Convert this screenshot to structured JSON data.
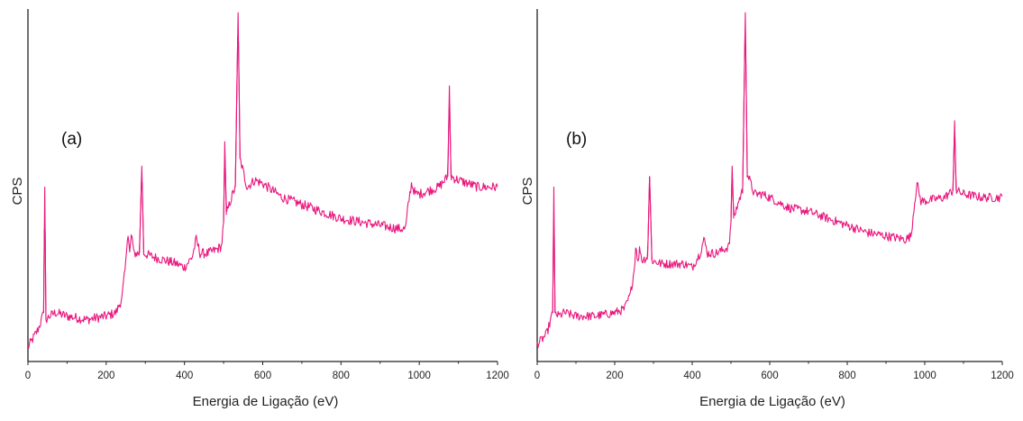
{
  "chart_data": [
    {
      "type": "line",
      "panel_label": "(a)",
      "xlabel": "Energia de Ligação (eV)",
      "ylabel": "CPS",
      "xlim": [
        0,
        1200
      ],
      "ylim": [
        0,
        100
      ],
      "x_ticks": [
        "0",
        "200",
        "400",
        "600",
        "800",
        "1000",
        "1200"
      ],
      "y_ticks_visible": false,
      "series": [
        {
          "color": "#e8177d",
          "points": [
            [
              0,
              4
            ],
            [
              10,
              6
            ],
            [
              25,
              9
            ],
            [
              35,
              12
            ],
            [
              40,
              14
            ],
            [
              43,
              50
            ],
            [
              46,
              12
            ],
            [
              55,
              13
            ],
            [
              70,
              14
            ],
            [
              100,
              13
            ],
            [
              150,
              12
            ],
            [
              200,
              13
            ],
            [
              225,
              14
            ],
            [
              240,
              18
            ],
            [
              250,
              28
            ],
            [
              255,
              38
            ],
            [
              260,
              31
            ],
            [
              265,
              37
            ],
            [
              270,
              31
            ],
            [
              285,
              31
            ],
            [
              291,
              56
            ],
            [
              296,
              31
            ],
            [
              320,
              30
            ],
            [
              350,
              29
            ],
            [
              380,
              28
            ],
            [
              400,
              27
            ],
            [
              420,
              30
            ],
            [
              430,
              35
            ],
            [
              440,
              31
            ],
            [
              460,
              31
            ],
            [
              480,
              32
            ],
            [
              495,
              33
            ],
            [
              500,
              40
            ],
            [
              503,
              63
            ],
            [
              507,
              42
            ],
            [
              520,
              47
            ],
            [
              530,
              50
            ],
            [
              537,
              100
            ],
            [
              542,
              58
            ],
            [
              560,
              50
            ],
            [
              580,
              52
            ],
            [
              600,
              51
            ],
            [
              650,
              47
            ],
            [
              700,
              45
            ],
            [
              750,
              43
            ],
            [
              800,
              41
            ],
            [
              850,
              40
            ],
            [
              900,
              39
            ],
            [
              950,
              38
            ],
            [
              965,
              38
            ],
            [
              972,
              45
            ],
            [
              980,
              51
            ],
            [
              990,
              48
            ],
            [
              1000,
              48
            ],
            [
              1050,
              50
            ],
            [
              1073,
              53
            ],
            [
              1077,
              79
            ],
            [
              1081,
              53
            ],
            [
              1100,
              52
            ],
            [
              1150,
              50
            ],
            [
              1200,
              50
            ]
          ],
          "noise": 1.4
        }
      ]
    },
    {
      "type": "line",
      "panel_label": "(b)",
      "xlabel": "Energia de Ligação (eV)",
      "ylabel": "CPS",
      "xlim": [
        0,
        1200
      ],
      "ylim": [
        0,
        100
      ],
      "x_ticks": [
        "0",
        "200",
        "400",
        "600",
        "800",
        "1000",
        "1200"
      ],
      "y_ticks_visible": false,
      "series": [
        {
          "color": "#e8177d",
          "points": [
            [
              0,
              5
            ],
            [
              10,
              6
            ],
            [
              25,
              8
            ],
            [
              35,
              12
            ],
            [
              40,
              14
            ],
            [
              43,
              50
            ],
            [
              46,
              14
            ],
            [
              55,
              13
            ],
            [
              70,
              14
            ],
            [
              100,
              13
            ],
            [
              150,
              13
            ],
            [
              200,
              14
            ],
            [
              225,
              15
            ],
            [
              240,
              19
            ],
            [
              250,
              26
            ],
            [
              255,
              34
            ],
            [
              260,
              28
            ],
            [
              265,
              33
            ],
            [
              270,
              29
            ],
            [
              285,
              30
            ],
            [
              290,
              53
            ],
            [
              296,
              29
            ],
            [
              320,
              28
            ],
            [
              350,
              28
            ],
            [
              380,
              28
            ],
            [
              400,
              27
            ],
            [
              420,
              31
            ],
            [
              430,
              35
            ],
            [
              440,
              31
            ],
            [
              460,
              31
            ],
            [
              480,
              32
            ],
            [
              495,
              33
            ],
            [
              500,
              40
            ],
            [
              503,
              56
            ],
            [
              507,
              41
            ],
            [
              520,
              46
            ],
            [
              530,
              49
            ],
            [
              537,
              100
            ],
            [
              542,
              54
            ],
            [
              560,
              48
            ],
            [
              580,
              48
            ],
            [
              600,
              47
            ],
            [
              650,
              44
            ],
            [
              700,
              43
            ],
            [
              750,
              41
            ],
            [
              800,
              39
            ],
            [
              850,
              37
            ],
            [
              900,
              36
            ],
            [
              950,
              35
            ],
            [
              965,
              36
            ],
            [
              972,
              44
            ],
            [
              980,
              51
            ],
            [
              990,
              46
            ],
            [
              1000,
              46
            ],
            [
              1050,
              47
            ],
            [
              1073,
              49
            ],
            [
              1077,
              69
            ],
            [
              1081,
              49
            ],
            [
              1100,
              48
            ],
            [
              1150,
              47
            ],
            [
              1200,
              47
            ]
          ],
          "noise": 1.3
        }
      ]
    }
  ]
}
